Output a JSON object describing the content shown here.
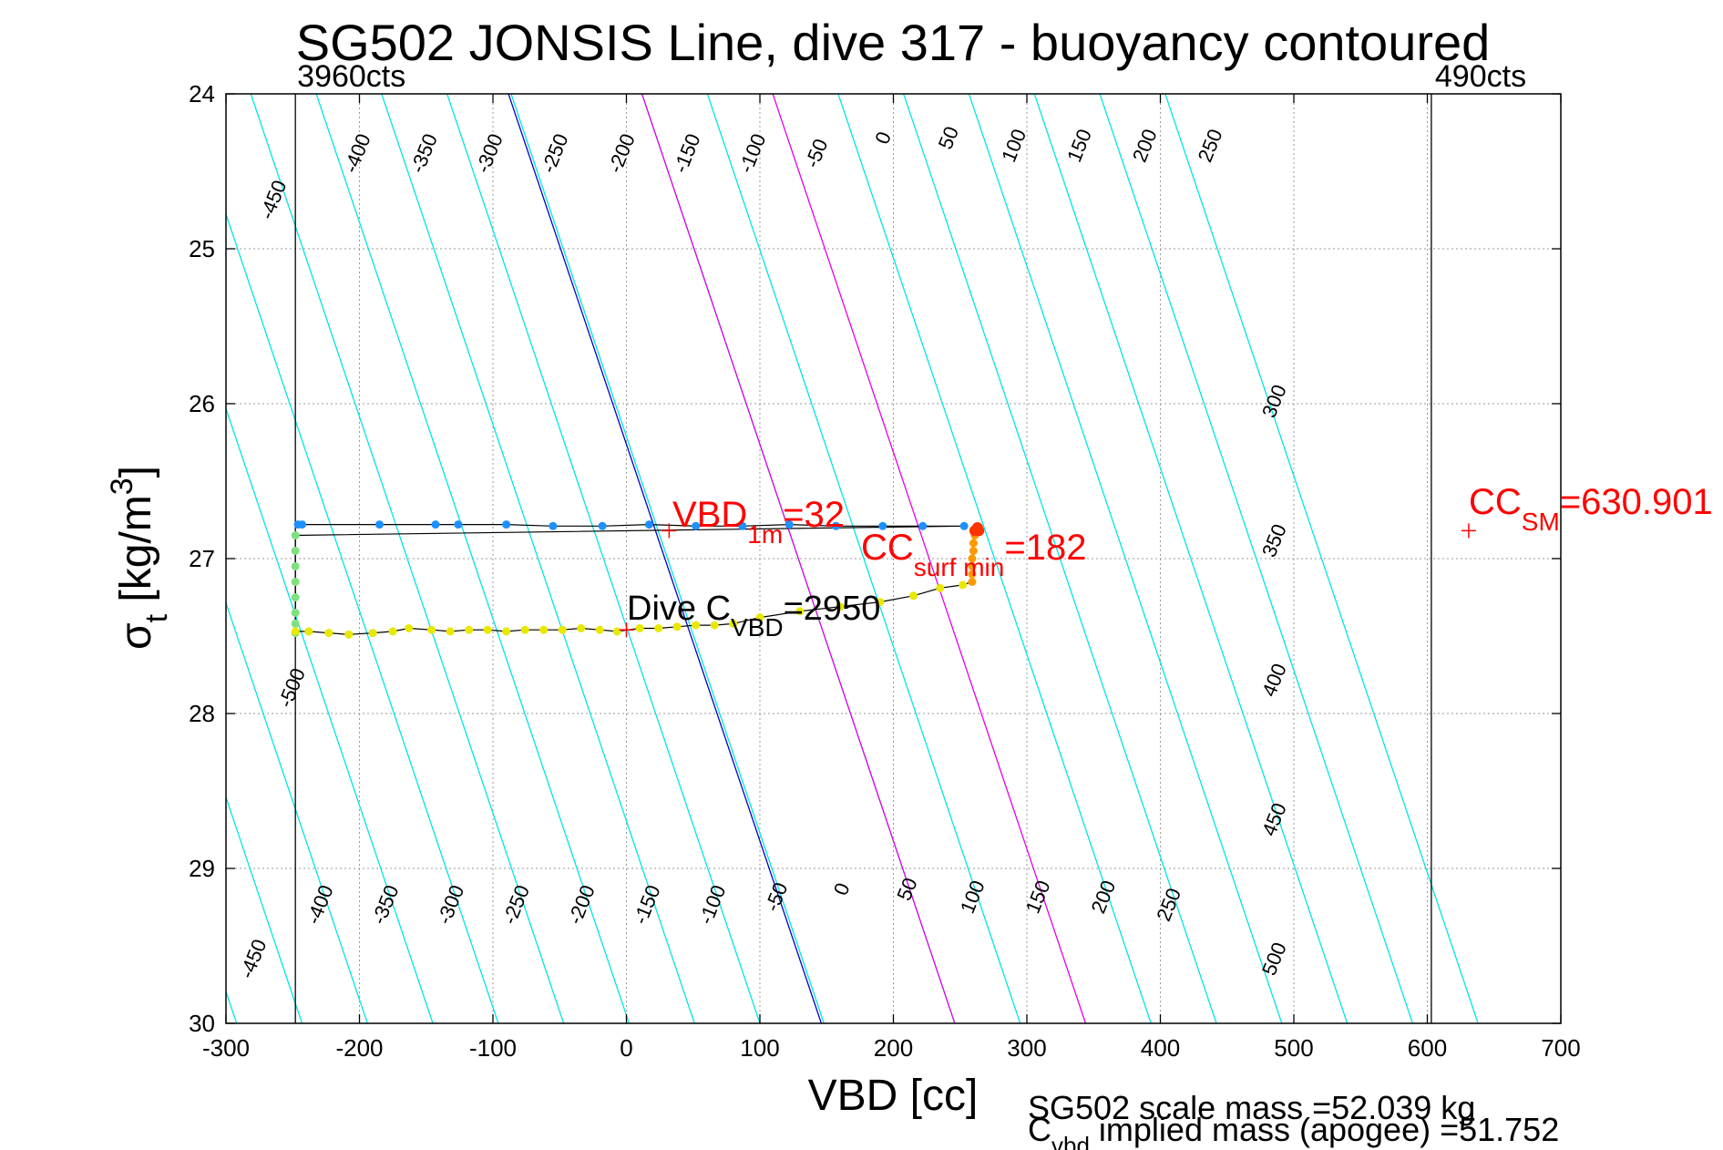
{
  "chart_data": {
    "type": "scatter",
    "title": "SG502 JONSIS Line, dive 317 - buoyancy contoured",
    "xlabel": "VBD [cc]",
    "ylabel_main": "σ",
    "ylabel_sub": "t",
    "ylabel_rest": " [kg/m",
    "ylabel_sup": "3",
    "ylabel_end": "]",
    "xlim": [
      -300,
      700
    ],
    "ylim": [
      24,
      30
    ],
    "y_reversed": true,
    "grid": true,
    "xticks": [
      -300,
      -200,
      -100,
      0,
      100,
      200,
      300,
      400,
      500,
      600,
      700
    ],
    "yticks": [
      24,
      25,
      26,
      27,
      28,
      29,
      30
    ],
    "colors": {
      "contour": "#00e5e5",
      "zero_contour": "#0000cc",
      "highlight_contours": "#e600e6",
      "annotation": "#ff0000",
      "trace": "#000000",
      "descent_points": "#1e90ff",
      "ascent_points": "#e8e800",
      "bottom_points": "#7fe07f",
      "surface_points": "#ff9900",
      "surface_end_points": "#ff3300"
    },
    "contour_slope_sigma_per_cc": 0.0256,
    "contour_values": [
      -500,
      -450,
      -400,
      -350,
      -300,
      -250,
      -200,
      -150,
      -100,
      -50,
      0,
      50,
      100,
      150,
      200,
      250,
      300,
      350,
      400,
      450,
      500
    ],
    "contour_x_at_sigma_30": [
      -292,
      -243,
      -194,
      -145,
      -96,
      -47,
      2,
      51,
      100,
      148,
      146,
      246,
      246,
      295,
      344,
      393,
      442,
      491,
      540,
      589,
      638
    ],
    "highlight_contour_values": [
      100,
      200
    ],
    "contour_labels_top": [
      {
        "text": "-450",
        "x": -260,
        "y": 24.7
      },
      {
        "text": "-400",
        "x": -197,
        "y": 24.4
      },
      {
        "text": "-350",
        "x": -147,
        "y": 24.4
      },
      {
        "text": "-300",
        "x": -98,
        "y": 24.4
      },
      {
        "text": "-250",
        "x": -49,
        "y": 24.4
      },
      {
        "text": "-200",
        "x": 1,
        "y": 24.4
      },
      {
        "text": "-150",
        "x": 50,
        "y": 24.4
      },
      {
        "text": "-100",
        "x": 99,
        "y": 24.4
      },
      {
        "text": "-50",
        "x": 147,
        "y": 24.4
      },
      {
        "text": "0",
        "x": 197,
        "y": 24.3
      },
      {
        "text": "50",
        "x": 246,
        "y": 24.3
      },
      {
        "text": "100",
        "x": 295,
        "y": 24.35
      },
      {
        "text": "150",
        "x": 344,
        "y": 24.35
      },
      {
        "text": "200",
        "x": 393,
        "y": 24.35
      },
      {
        "text": "250",
        "x": 442,
        "y": 24.35
      },
      {
        "text": "300",
        "x": 490,
        "y": 26.0
      },
      {
        "text": "350",
        "x": 490,
        "y": 26.9
      },
      {
        "text": "400",
        "x": 490,
        "y": 27.8
      },
      {
        "text": "450",
        "x": 490,
        "y": 28.7
      },
      {
        "text": "500",
        "x": 490,
        "y": 29.6
      },
      {
        "text": "-500",
        "x": -246,
        "y": 27.85
      }
    ],
    "contour_labels_bottom": [
      {
        "text": "-450",
        "x": -275,
        "y": 29.6
      },
      {
        "text": "-400",
        "x": -225,
        "y": 29.25
      },
      {
        "text": "-350",
        "x": -176,
        "y": 29.25
      },
      {
        "text": "-300",
        "x": -127,
        "y": 29.25
      },
      {
        "text": "-250",
        "x": -78,
        "y": 29.25
      },
      {
        "text": "-200",
        "x": -29,
        "y": 29.25
      },
      {
        "text": "-150",
        "x": 20,
        "y": 29.25
      },
      {
        "text": "-100",
        "x": 69,
        "y": 29.25
      },
      {
        "text": "-50",
        "x": 117,
        "y": 29.2
      },
      {
        "text": "0",
        "x": 166,
        "y": 29.15
      },
      {
        "text": "50",
        "x": 215,
        "y": 29.15
      },
      {
        "text": "100",
        "x": 264,
        "y": 29.2
      },
      {
        "text": "150",
        "x": 313,
        "y": 29.2
      },
      {
        "text": "200",
        "x": 362,
        "y": 29.2
      },
      {
        "text": "250",
        "x": 411,
        "y": 29.25
      }
    ],
    "vertical_lines": [
      {
        "x": -248,
        "label": "3960cts"
      },
      {
        "x": 603,
        "label": "490cts"
      }
    ],
    "series": [
      {
        "name": "descent",
        "x": [
          -246,
          -243,
          -185,
          -143,
          -126,
          -90,
          -55,
          -18,
          17,
          52,
          87,
          122,
          157,
          192,
          222,
          253
        ],
        "y": [
          26.78,
          26.78,
          26.78,
          26.78,
          26.78,
          26.78,
          26.79,
          26.79,
          26.78,
          26.79,
          26.79,
          26.78,
          26.79,
          26.79,
          26.79,
          26.79
        ]
      },
      {
        "name": "bottom",
        "x": [
          -248,
          -248,
          -248,
          -248,
          -248,
          -248,
          -248,
          -248
        ],
        "y": [
          26.85,
          26.95,
          27.05,
          27.15,
          27.25,
          27.35,
          27.42,
          27.48
        ]
      },
      {
        "name": "ascent",
        "x": [
          -248,
          -238,
          -223,
          -208,
          -190,
          -175,
          -163,
          -146,
          -132,
          -118,
          -104,
          -90,
          -76,
          -62,
          -48,
          -34,
          -20,
          -7,
          10,
          24,
          38,
          52,
          66,
          80,
          100,
          130,
          160,
          190,
          215,
          235,
          252
        ],
        "y": [
          27.47,
          27.47,
          27.48,
          27.49,
          27.48,
          27.47,
          27.45,
          27.46,
          27.47,
          27.46,
          27.46,
          27.47,
          27.46,
          27.46,
          27.46,
          27.45,
          27.46,
          27.47,
          27.45,
          27.45,
          27.44,
          27.43,
          27.43,
          27.42,
          27.38,
          27.34,
          27.31,
          27.28,
          27.24,
          27.19,
          27.17
        ]
      },
      {
        "name": "surface",
        "x": [
          259,
          259,
          259,
          259,
          260,
          260,
          261
        ],
        "y": [
          27.15,
          27.1,
          27.05,
          27.0,
          26.95,
          26.9,
          26.85
        ]
      },
      {
        "name": "surface_end",
        "x": [
          261,
          263,
          264
        ],
        "y": [
          26.82,
          26.8,
          26.82
        ]
      }
    ],
    "markers": [
      {
        "x": 32,
        "y": 26.82
      },
      {
        "x": 0,
        "y": 27.46
      },
      {
        "x": 631,
        "y": 26.82
      }
    ],
    "annotations": {
      "vbd_1m": {
        "main": "VBD",
        "sub": "1m",
        "rest": "=32"
      },
      "cc_surf_min": {
        "main": "CC",
        "sub": "surf min",
        "rest": "=182"
      },
      "cc_sm": {
        "main": "CC",
        "sub": "SM",
        "rest": "=630.901"
      },
      "dive_cvbd": {
        "main": "Dive C",
        "sub": "VBD",
        "rest": "=2950"
      }
    },
    "footer": {
      "scale_mass": "SG502 scale mass =52.039 kg",
      "implied_main": "C",
      "implied_sub": "vbd",
      "implied_rest": " implied mass (apogee) =51.752"
    }
  }
}
